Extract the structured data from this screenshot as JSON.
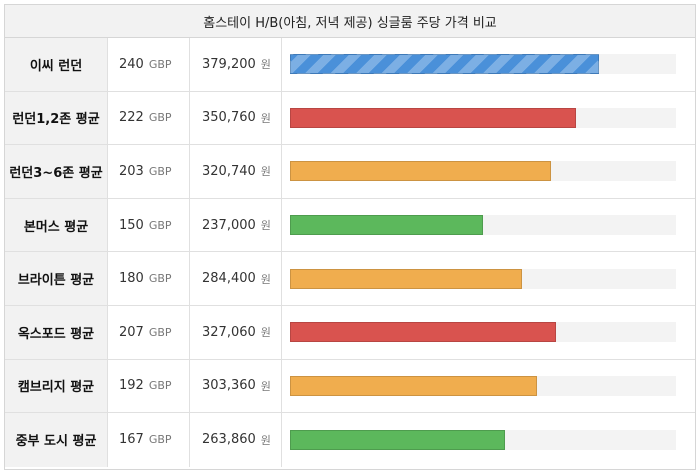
{
  "title": "홈스테이 H/B(아침, 저녁 제공) 싱글룸 주당 가격 비교",
  "units": {
    "gbp": "GBP",
    "krw": "원"
  },
  "max_value": 300,
  "rows": [
    {
      "name": "이씨 런던",
      "gbp": "240",
      "krw": "379,200",
      "value": 240,
      "color": "#4a90d9",
      "striped": true
    },
    {
      "name": "런던1,2존 평균",
      "gbp": "222",
      "krw": "350,760",
      "value": 222,
      "color": "#d9534f",
      "striped": false
    },
    {
      "name": "런던3~6존 평균",
      "gbp": "203",
      "krw": "320,740",
      "value": 203,
      "color": "#f0ad4e",
      "striped": false
    },
    {
      "name": "본머스 평균",
      "gbp": "150",
      "krw": "237,000",
      "value": 150,
      "color": "#5cb85c",
      "striped": false
    },
    {
      "name": "브라이튼 평균",
      "gbp": "180",
      "krw": "284,400",
      "value": 180,
      "color": "#f0ad4e",
      "striped": false
    },
    {
      "name": "옥스포드 평균",
      "gbp": "207",
      "krw": "327,060",
      "value": 207,
      "color": "#d9534f",
      "striped": false
    },
    {
      "name": "캠브리지 평균",
      "gbp": "192",
      "krw": "303,360",
      "value": 192,
      "color": "#f0ad4e",
      "striped": false
    },
    {
      "name": "중부 도시 평균",
      "gbp": "167",
      "krw": "263,860",
      "value": 167,
      "color": "#5cb85c",
      "striped": false
    }
  ]
}
